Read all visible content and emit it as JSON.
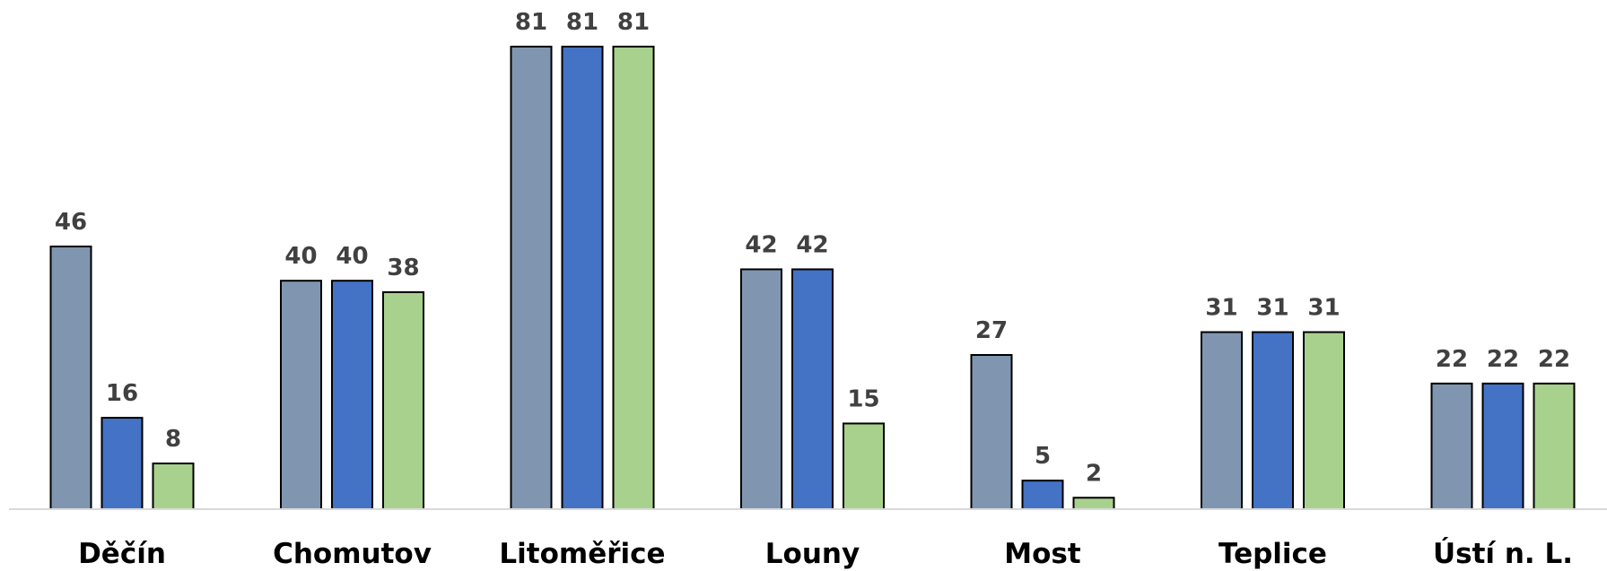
{
  "chart_data": {
    "type": "bar",
    "title": "",
    "xlabel": "",
    "ylabel": "",
    "categories": [
      "Děčín",
      "Chomutov",
      "Litoměřice",
      "Louny",
      "Most",
      "Teplice",
      "Ústí n. L."
    ],
    "series": [
      {
        "color": "#8096b0",
        "values": [
          46,
          40,
          81,
          42,
          27,
          31,
          22
        ]
      },
      {
        "color": "#4472c4",
        "values": [
          16,
          40,
          81,
          42,
          5,
          31,
          22
        ]
      },
      {
        "color": "#a9d18e",
        "values": [
          8,
          38,
          81,
          15,
          2,
          31,
          22
        ]
      }
    ],
    "ylim": [
      0,
      81
    ],
    "grid": false,
    "legend": "none",
    "colors": {
      "label_text": "#404040",
      "category_text": "#000000",
      "bar_outline": "#000000",
      "baseline": "#d9d9d9"
    }
  }
}
